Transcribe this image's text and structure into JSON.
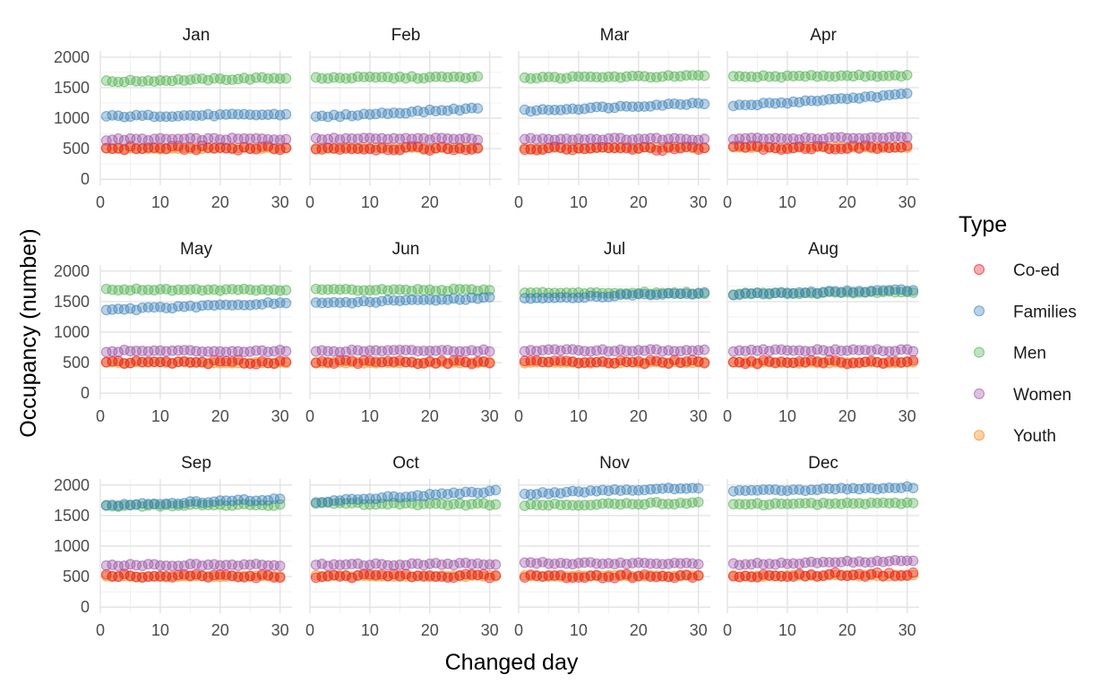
{
  "chart_data": {
    "type": "scatter",
    "layout": "facet-grid",
    "xlabel": "Changed day",
    "ylabel": "Occupancy (number)",
    "ylim": [
      0,
      2000
    ],
    "yticks": [
      0,
      500,
      1000,
      1500,
      2000
    ],
    "xticks": [
      0,
      10,
      20,
      30
    ],
    "grid": true,
    "legend": {
      "title": "Type",
      "placement": "right",
      "entries": [
        "Co-ed",
        "Families",
        "Men",
        "Women",
        "Youth"
      ]
    },
    "series": [
      {
        "name": "Co-ed",
        "color": "#E41A1C"
      },
      {
        "name": "Families",
        "color": "#377EB8"
      },
      {
        "name": "Men",
        "color": "#4DAF4A"
      },
      {
        "name": "Women",
        "color": "#984EA3"
      },
      {
        "name": "Youth",
        "color": "#FF7F00"
      }
    ],
    "panels": [
      {
        "month": "Jan",
        "days": 31,
        "trend": {
          "Families": [
            1030,
            1060
          ],
          "Men": [
            1600,
            1660
          ],
          "Women": [
            650,
            660
          ],
          "Co-ed": [
            510,
            510
          ],
          "Youth": [
            500,
            510
          ]
        }
      },
      {
        "month": "Feb",
        "days": 28,
        "trend": {
          "Families": [
            1020,
            1160
          ],
          "Men": [
            1660,
            1670
          ],
          "Women": [
            660,
            660
          ],
          "Co-ed": [
            510,
            500
          ],
          "Youth": [
            510,
            510
          ]
        }
      },
      {
        "month": "Mar",
        "days": 31,
        "trend": {
          "Families": [
            1120,
            1250
          ],
          "Men": [
            1660,
            1690
          ],
          "Women": [
            660,
            660
          ],
          "Co-ed": [
            500,
            500
          ],
          "Youth": [
            510,
            520
          ]
        }
      },
      {
        "month": "Apr",
        "days": 30,
        "trend": {
          "Families": [
            1200,
            1390
          ],
          "Men": [
            1680,
            1700
          ],
          "Women": [
            660,
            680
          ],
          "Co-ed": [
            520,
            520
          ],
          "Youth": [
            520,
            520
          ]
        }
      },
      {
        "month": "May",
        "days": 31,
        "trend": {
          "Families": [
            1360,
            1480
          ],
          "Men": [
            1700,
            1690
          ],
          "Women": [
            690,
            690
          ],
          "Co-ed": [
            510,
            510
          ],
          "Youth": [
            500,
            500
          ]
        }
      },
      {
        "month": "Jun",
        "days": 30,
        "trend": {
          "Families": [
            1470,
            1560
          ],
          "Men": [
            1690,
            1690
          ],
          "Women": [
            690,
            700
          ],
          "Co-ed": [
            510,
            510
          ],
          "Youth": [
            500,
            500
          ]
        }
      },
      {
        "month": "Jul",
        "days": 31,
        "trend": {
          "Families": [
            1550,
            1640
          ],
          "Men": [
            1640,
            1640
          ],
          "Women": [
            700,
            700
          ],
          "Co-ed": [
            510,
            510
          ],
          "Youth": [
            500,
            500
          ]
        }
      },
      {
        "month": "Aug",
        "days": 31,
        "trend": {
          "Families": [
            1620,
            1690
          ],
          "Men": [
            1630,
            1660
          ],
          "Women": [
            700,
            700
          ],
          "Co-ed": [
            510,
            510
          ],
          "Youth": [
            500,
            500
          ]
        }
      },
      {
        "month": "Sep",
        "days": 30,
        "trend": {
          "Families": [
            1660,
            1770
          ],
          "Men": [
            1660,
            1680
          ],
          "Women": [
            690,
            690
          ],
          "Co-ed": [
            510,
            510
          ],
          "Youth": [
            500,
            510
          ]
        }
      },
      {
        "month": "Oct",
        "days": 31,
        "trend": {
          "Families": [
            1730,
            1900
          ],
          "Men": [
            1700,
            1680
          ],
          "Women": [
            690,
            710
          ],
          "Co-ed": [
            510,
            510
          ],
          "Youth": [
            510,
            510
          ]
        }
      },
      {
        "month": "Nov",
        "days": 30,
        "trend": {
          "Families": [
            1860,
            1960
          ],
          "Men": [
            1670,
            1710
          ],
          "Women": [
            720,
            720
          ],
          "Co-ed": [
            510,
            510
          ],
          "Youth": [
            510,
            510
          ]
        }
      },
      {
        "month": "Dec",
        "days": 31,
        "trend": {
          "Families": [
            1900,
            1960
          ],
          "Men": [
            1680,
            1710
          ],
          "Women": [
            700,
            760
          ],
          "Co-ed": [
            520,
            540
          ],
          "Youth": [
            510,
            520
          ]
        }
      }
    ]
  }
}
